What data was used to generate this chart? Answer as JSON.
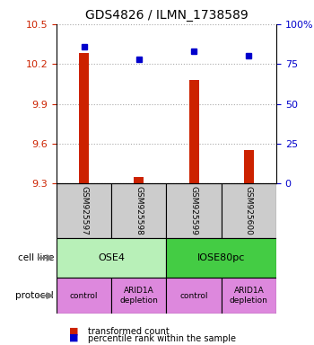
{
  "title": "GDS4826 / ILMN_1738589",
  "samples": [
    "GSM925597",
    "GSM925598",
    "GSM925599",
    "GSM925600"
  ],
  "red_values": [
    10.28,
    9.35,
    10.08,
    9.55
  ],
  "blue_values": [
    86,
    78,
    83,
    80
  ],
  "y_min": 9.3,
  "y_max": 10.5,
  "y_ticks": [
    9.3,
    9.6,
    9.9,
    10.2,
    10.5
  ],
  "right_y_ticks": [
    0,
    25,
    50,
    75,
    100
  ],
  "right_y_labels": [
    "0",
    "25",
    "50",
    "75",
    "100%"
  ],
  "cell_line_labels": [
    "OSE4",
    "IOSE80pc"
  ],
  "cell_line_colors": [
    "#90ee90",
    "#44cc44"
  ],
  "cell_line_spans": [
    [
      0,
      2
    ],
    [
      2,
      4
    ]
  ],
  "protocol_labels": [
    "control",
    "ARID1A\ndepletion",
    "control",
    "ARID1A\ndepletion"
  ],
  "protocol_color": "#dd88dd",
  "sample_box_color": "#cccccc",
  "bar_color": "#cc2200",
  "dot_color": "#0000cc",
  "legend_red_label": "transformed count",
  "legend_blue_label": "percentile rank within the sample",
  "grid_color": "#aaaaaa"
}
